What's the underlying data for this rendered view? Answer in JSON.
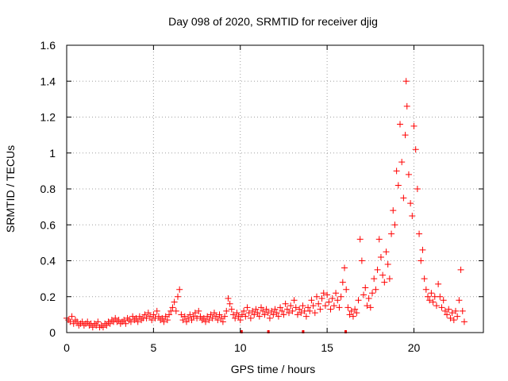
{
  "chart_data": {
    "type": "scatter",
    "title": "Day 098 of 2020, SRMTID for receiver djig",
    "xlabel": "GPS time / hours",
    "ylabel": "SRMTID / TECUs",
    "xlim": [
      0,
      24
    ],
    "ylim": [
      0,
      1.6
    ],
    "grid": true,
    "legend": "none",
    "marker": "+",
    "color": "#ff0000",
    "x_ticks": [
      0,
      5,
      10,
      15,
      20
    ],
    "x_tick_labels": [
      "0",
      "5",
      "10",
      "15",
      "20"
    ],
    "y_ticks": [
      0,
      0.2,
      0.4,
      0.6,
      0.8,
      1.0,
      1.2,
      1.4,
      1.6
    ],
    "y_tick_labels": [
      "0",
      "0.2",
      "0.4",
      "0.6",
      "0.8",
      "1",
      "1.2",
      "1.4",
      "1.6"
    ],
    "series": [
      {
        "name": "SRMTID",
        "points": [
          [
            0.0,
            0.08
          ],
          [
            0.1,
            0.07
          ],
          [
            0.2,
            0.06
          ],
          [
            0.3,
            0.09
          ],
          [
            0.4,
            0.05
          ],
          [
            0.5,
            0.07
          ],
          [
            0.6,
            0.06
          ],
          [
            0.7,
            0.04
          ],
          [
            0.8,
            0.05
          ],
          [
            0.9,
            0.06
          ],
          [
            1.0,
            0.04
          ],
          [
            1.1,
            0.05
          ],
          [
            1.2,
            0.06
          ],
          [
            1.3,
            0.04
          ],
          [
            1.4,
            0.05
          ],
          [
            1.5,
            0.03
          ],
          [
            1.6,
            0.05
          ],
          [
            1.7,
            0.04
          ],
          [
            1.8,
            0.06
          ],
          [
            1.9,
            0.03
          ],
          [
            2.0,
            0.04
          ],
          [
            2.1,
            0.03
          ],
          [
            2.2,
            0.05
          ],
          [
            2.3,
            0.04
          ],
          [
            2.4,
            0.06
          ],
          [
            2.5,
            0.05
          ],
          [
            2.6,
            0.07
          ],
          [
            2.7,
            0.06
          ],
          [
            2.8,
            0.08
          ],
          [
            2.9,
            0.06
          ],
          [
            3.0,
            0.07
          ],
          [
            3.1,
            0.05
          ],
          [
            3.2,
            0.06
          ],
          [
            3.3,
            0.07
          ],
          [
            3.4,
            0.05
          ],
          [
            3.5,
            0.08
          ],
          [
            3.6,
            0.07
          ],
          [
            3.7,
            0.06
          ],
          [
            3.8,
            0.09
          ],
          [
            3.9,
            0.07
          ],
          [
            4.0,
            0.08
          ],
          [
            4.1,
            0.06
          ],
          [
            4.2,
            0.09
          ],
          [
            4.3,
            0.07
          ],
          [
            4.4,
            0.08
          ],
          [
            4.5,
            0.1
          ],
          [
            4.6,
            0.08
          ],
          [
            4.7,
            0.11
          ],
          [
            4.8,
            0.09
          ],
          [
            4.9,
            0.07
          ],
          [
            5.0,
            0.1
          ],
          [
            5.1,
            0.08
          ],
          [
            5.2,
            0.12
          ],
          [
            5.3,
            0.09
          ],
          [
            5.4,
            0.07
          ],
          [
            5.5,
            0.08
          ],
          [
            5.6,
            0.06
          ],
          [
            5.7,
            0.09
          ],
          [
            5.8,
            0.07
          ],
          [
            5.9,
            0.1
          ],
          [
            6.0,
            0.12
          ],
          [
            6.1,
            0.14
          ],
          [
            6.2,
            0.17
          ],
          [
            6.3,
            0.12
          ],
          [
            6.4,
            0.2
          ],
          [
            6.5,
            0.24
          ],
          [
            6.6,
            0.1
          ],
          [
            6.7,
            0.07
          ],
          [
            6.8,
            0.09
          ],
          [
            6.9,
            0.06
          ],
          [
            7.0,
            0.08
          ],
          [
            7.1,
            0.1
          ],
          [
            7.2,
            0.07
          ],
          [
            7.3,
            0.09
          ],
          [
            7.4,
            0.11
          ],
          [
            7.5,
            0.08
          ],
          [
            7.6,
            0.12
          ],
          [
            7.7,
            0.09
          ],
          [
            7.8,
            0.07
          ],
          [
            7.9,
            0.08
          ],
          [
            8.0,
            0.06
          ],
          [
            8.1,
            0.09
          ],
          [
            8.2,
            0.07
          ],
          [
            8.3,
            0.1
          ],
          [
            8.4,
            0.08
          ],
          [
            8.5,
            0.11
          ],
          [
            8.6,
            0.09
          ],
          [
            8.7,
            0.07
          ],
          [
            8.8,
            0.1
          ],
          [
            8.9,
            0.08
          ],
          [
            9.0,
            0.06
          ],
          [
            9.1,
            0.09
          ],
          [
            9.2,
            0.12
          ],
          [
            9.3,
            0.19
          ],
          [
            9.4,
            0.16
          ],
          [
            9.5,
            0.13
          ],
          [
            9.6,
            0.1
          ],
          [
            9.7,
            0.08
          ],
          [
            9.8,
            0.11
          ],
          [
            9.9,
            0.09
          ],
          [
            10.0,
            0.07
          ],
          [
            10.1,
            0.1
          ],
          [
            10.2,
            0.12
          ],
          [
            10.3,
            0.09
          ],
          [
            10.4,
            0.14
          ],
          [
            10.5,
            0.11
          ],
          [
            10.6,
            0.08
          ],
          [
            10.7,
            0.12
          ],
          [
            10.8,
            0.1
          ],
          [
            10.9,
            0.13
          ],
          [
            11.0,
            0.11
          ],
          [
            11.1,
            0.09
          ],
          [
            11.2,
            0.14
          ],
          [
            11.3,
            0.12
          ],
          [
            11.4,
            0.1
          ],
          [
            11.5,
            0.13
          ],
          [
            11.6,
            0.11
          ],
          [
            11.7,
            0.08
          ],
          [
            11.8,
            0.12
          ],
          [
            11.9,
            0.1
          ],
          [
            12.0,
            0.13
          ],
          [
            12.1,
            0.11
          ],
          [
            12.2,
            0.09
          ],
          [
            12.3,
            0.14
          ],
          [
            12.4,
            0.12
          ],
          [
            12.5,
            0.1
          ],
          [
            12.6,
            0.16
          ],
          [
            12.7,
            0.13
          ],
          [
            12.8,
            0.11
          ],
          [
            12.9,
            0.15
          ],
          [
            13.0,
            0.12
          ],
          [
            13.1,
            0.18
          ],
          [
            13.2,
            0.14
          ],
          [
            13.3,
            0.1
          ],
          [
            13.4,
            0.13
          ],
          [
            13.5,
            0.11
          ],
          [
            13.6,
            0.15
          ],
          [
            13.7,
            0.12
          ],
          [
            13.8,
            0.09
          ],
          [
            13.9,
            0.14
          ],
          [
            14.0,
            0.12
          ],
          [
            14.1,
            0.18
          ],
          [
            14.2,
            0.15
          ],
          [
            14.3,
            0.11
          ],
          [
            14.4,
            0.2
          ],
          [
            14.5,
            0.16
          ],
          [
            14.6,
            0.13
          ],
          [
            14.7,
            0.19
          ],
          [
            14.8,
            0.22
          ],
          [
            14.9,
            0.15
          ],
          [
            15.0,
            0.21
          ],
          [
            15.1,
            0.17
          ],
          [
            15.2,
            0.13
          ],
          [
            15.3,
            0.19
          ],
          [
            15.4,
            0.15
          ],
          [
            15.5,
            0.22
          ],
          [
            15.6,
            0.18
          ],
          [
            15.7,
            0.14
          ],
          [
            15.8,
            0.2
          ],
          [
            15.9,
            0.28
          ],
          [
            16.0,
            0.36
          ],
          [
            16.1,
            0.24
          ],
          [
            16.2,
            0.14
          ],
          [
            16.3,
            0.1
          ],
          [
            16.4,
            0.12
          ],
          [
            16.5,
            0.09
          ],
          [
            16.6,
            0.13
          ],
          [
            16.7,
            0.11
          ],
          [
            16.8,
            0.18
          ],
          [
            16.9,
            0.52
          ],
          [
            17.0,
            0.4
          ],
          [
            17.1,
            0.21
          ],
          [
            17.2,
            0.25
          ],
          [
            17.3,
            0.15
          ],
          [
            17.4,
            0.19
          ],
          [
            17.5,
            0.14
          ],
          [
            17.6,
            0.22
          ],
          [
            17.7,
            0.3
          ],
          [
            17.8,
            0.24
          ],
          [
            17.9,
            0.35
          ],
          [
            18.0,
            0.52
          ],
          [
            18.1,
            0.42
          ],
          [
            18.2,
            0.32
          ],
          [
            18.3,
            0.28
          ],
          [
            18.4,
            0.45
          ],
          [
            18.5,
            0.38
          ],
          [
            18.6,
            0.3
          ],
          [
            18.7,
            0.55
          ],
          [
            18.8,
            0.68
          ],
          [
            18.9,
            0.6
          ],
          [
            19.0,
            0.9
          ],
          [
            19.1,
            0.82
          ],
          [
            19.2,
            1.16
          ],
          [
            19.3,
            0.95
          ],
          [
            19.4,
            0.75
          ],
          [
            19.5,
            1.1
          ],
          [
            19.55,
            1.4
          ],
          [
            19.6,
            1.26
          ],
          [
            19.7,
            0.88
          ],
          [
            19.8,
            0.72
          ],
          [
            19.9,
            0.65
          ],
          [
            20.0,
            1.15
          ],
          [
            20.1,
            1.02
          ],
          [
            20.2,
            0.8
          ],
          [
            20.3,
            0.55
          ],
          [
            20.4,
            0.4
          ],
          [
            20.5,
            0.46
          ],
          [
            20.6,
            0.3
          ],
          [
            20.7,
            0.24
          ],
          [
            20.8,
            0.2
          ],
          [
            20.9,
            0.18
          ],
          [
            21.0,
            0.22
          ],
          [
            21.1,
            0.17
          ],
          [
            21.2,
            0.2
          ],
          [
            21.3,
            0.15
          ],
          [
            21.4,
            0.27
          ],
          [
            21.5,
            0.2
          ],
          [
            21.6,
            0.14
          ],
          [
            21.7,
            0.18
          ],
          [
            21.8,
            0.12
          ],
          [
            21.9,
            0.1
          ],
          [
            22.0,
            0.13
          ],
          [
            22.1,
            0.08
          ],
          [
            22.2,
            0.11
          ],
          [
            22.3,
            0.07
          ],
          [
            22.4,
            0.12
          ],
          [
            22.5,
            0.09
          ],
          [
            22.6,
            0.18
          ],
          [
            22.7,
            0.35
          ],
          [
            22.8,
            0.12
          ],
          [
            22.9,
            0.06
          ]
        ]
      }
    ],
    "data_gaps": [
      {
        "start": 10.0,
        "end": 10.05
      },
      {
        "start": 11.55,
        "end": 11.65
      },
      {
        "start": 13.55,
        "end": 13.65
      },
      {
        "start": 16.0,
        "end": 16.1
      }
    ]
  }
}
